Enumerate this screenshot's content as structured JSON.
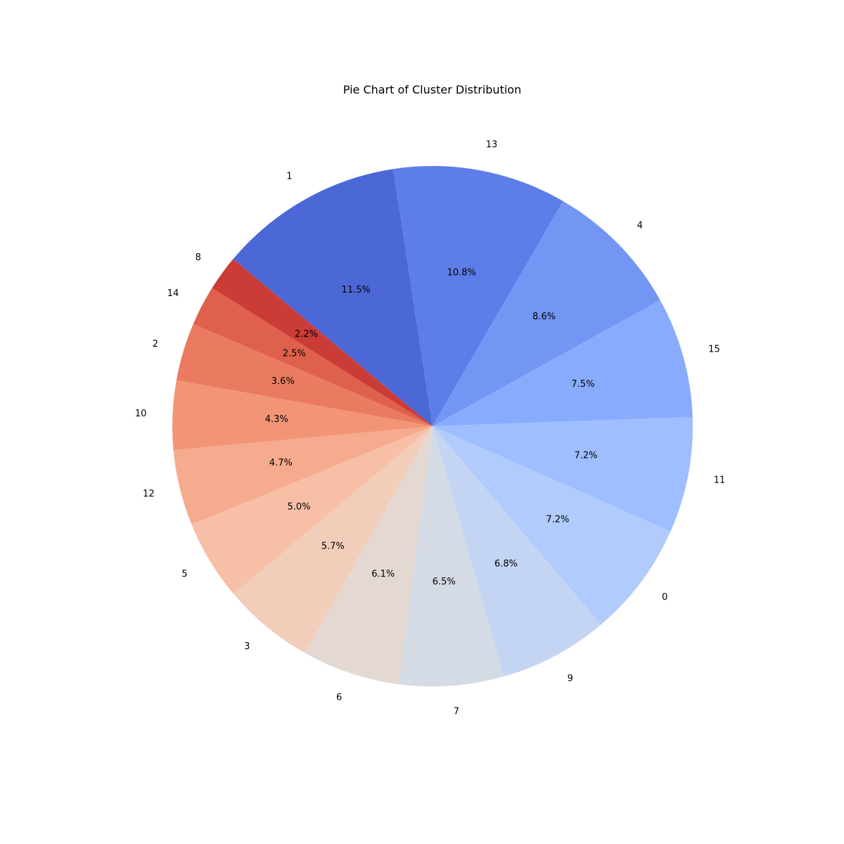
{
  "chart_data": {
    "type": "pie",
    "title": "Pie Chart of Cluster Distribution",
    "start_angle_deg": 140,
    "direction": "clockwise",
    "slices": [
      {
        "label": "1",
        "value": 11.5,
        "pct_label": "11.5%",
        "color": "#4c68d7"
      },
      {
        "label": "13",
        "value": 10.8,
        "pct_label": "10.8%",
        "color": "#5d7ee9"
      },
      {
        "label": "4",
        "value": 8.6,
        "pct_label": "8.6%",
        "color": "#7396f5"
      },
      {
        "label": "15",
        "value": 7.5,
        "pct_label": "7.5%",
        "color": "#88abfd"
      },
      {
        "label": "11",
        "value": 7.2,
        "pct_label": "7.2%",
        "color": "#9ebeff"
      },
      {
        "label": "0",
        "value": 7.2,
        "pct_label": "7.2%",
        "color": "#b1cbfc"
      },
      {
        "label": "9",
        "value": 6.8,
        "pct_label": "6.8%",
        "color": "#c4d5f3"
      },
      {
        "label": "7",
        "value": 6.5,
        "pct_label": "6.5%",
        "color": "#d5dbe5"
      },
      {
        "label": "6",
        "value": 6.1,
        "pct_label": "6.1%",
        "color": "#e4d9d2"
      },
      {
        "label": "3",
        "value": 5.7,
        "pct_label": "5.7%",
        "color": "#f1cdba"
      },
      {
        "label": "5",
        "value": 5.0,
        "pct_label": "5.0%",
        "color": "#f6bfa6"
      },
      {
        "label": "12",
        "value": 4.7,
        "pct_label": "4.7%",
        "color": "#f6ab8e"
      },
      {
        "label": "10",
        "value": 4.3,
        "pct_label": "4.3%",
        "color": "#f29576"
      },
      {
        "label": "2",
        "value": 3.6,
        "pct_label": "3.6%",
        "color": "#ea7b60"
      },
      {
        "label": "14",
        "value": 2.5,
        "pct_label": "2.5%",
        "color": "#de604d"
      },
      {
        "label": "8",
        "value": 2.2,
        "pct_label": "2.2%",
        "color": "#cb3c36"
      }
    ]
  }
}
